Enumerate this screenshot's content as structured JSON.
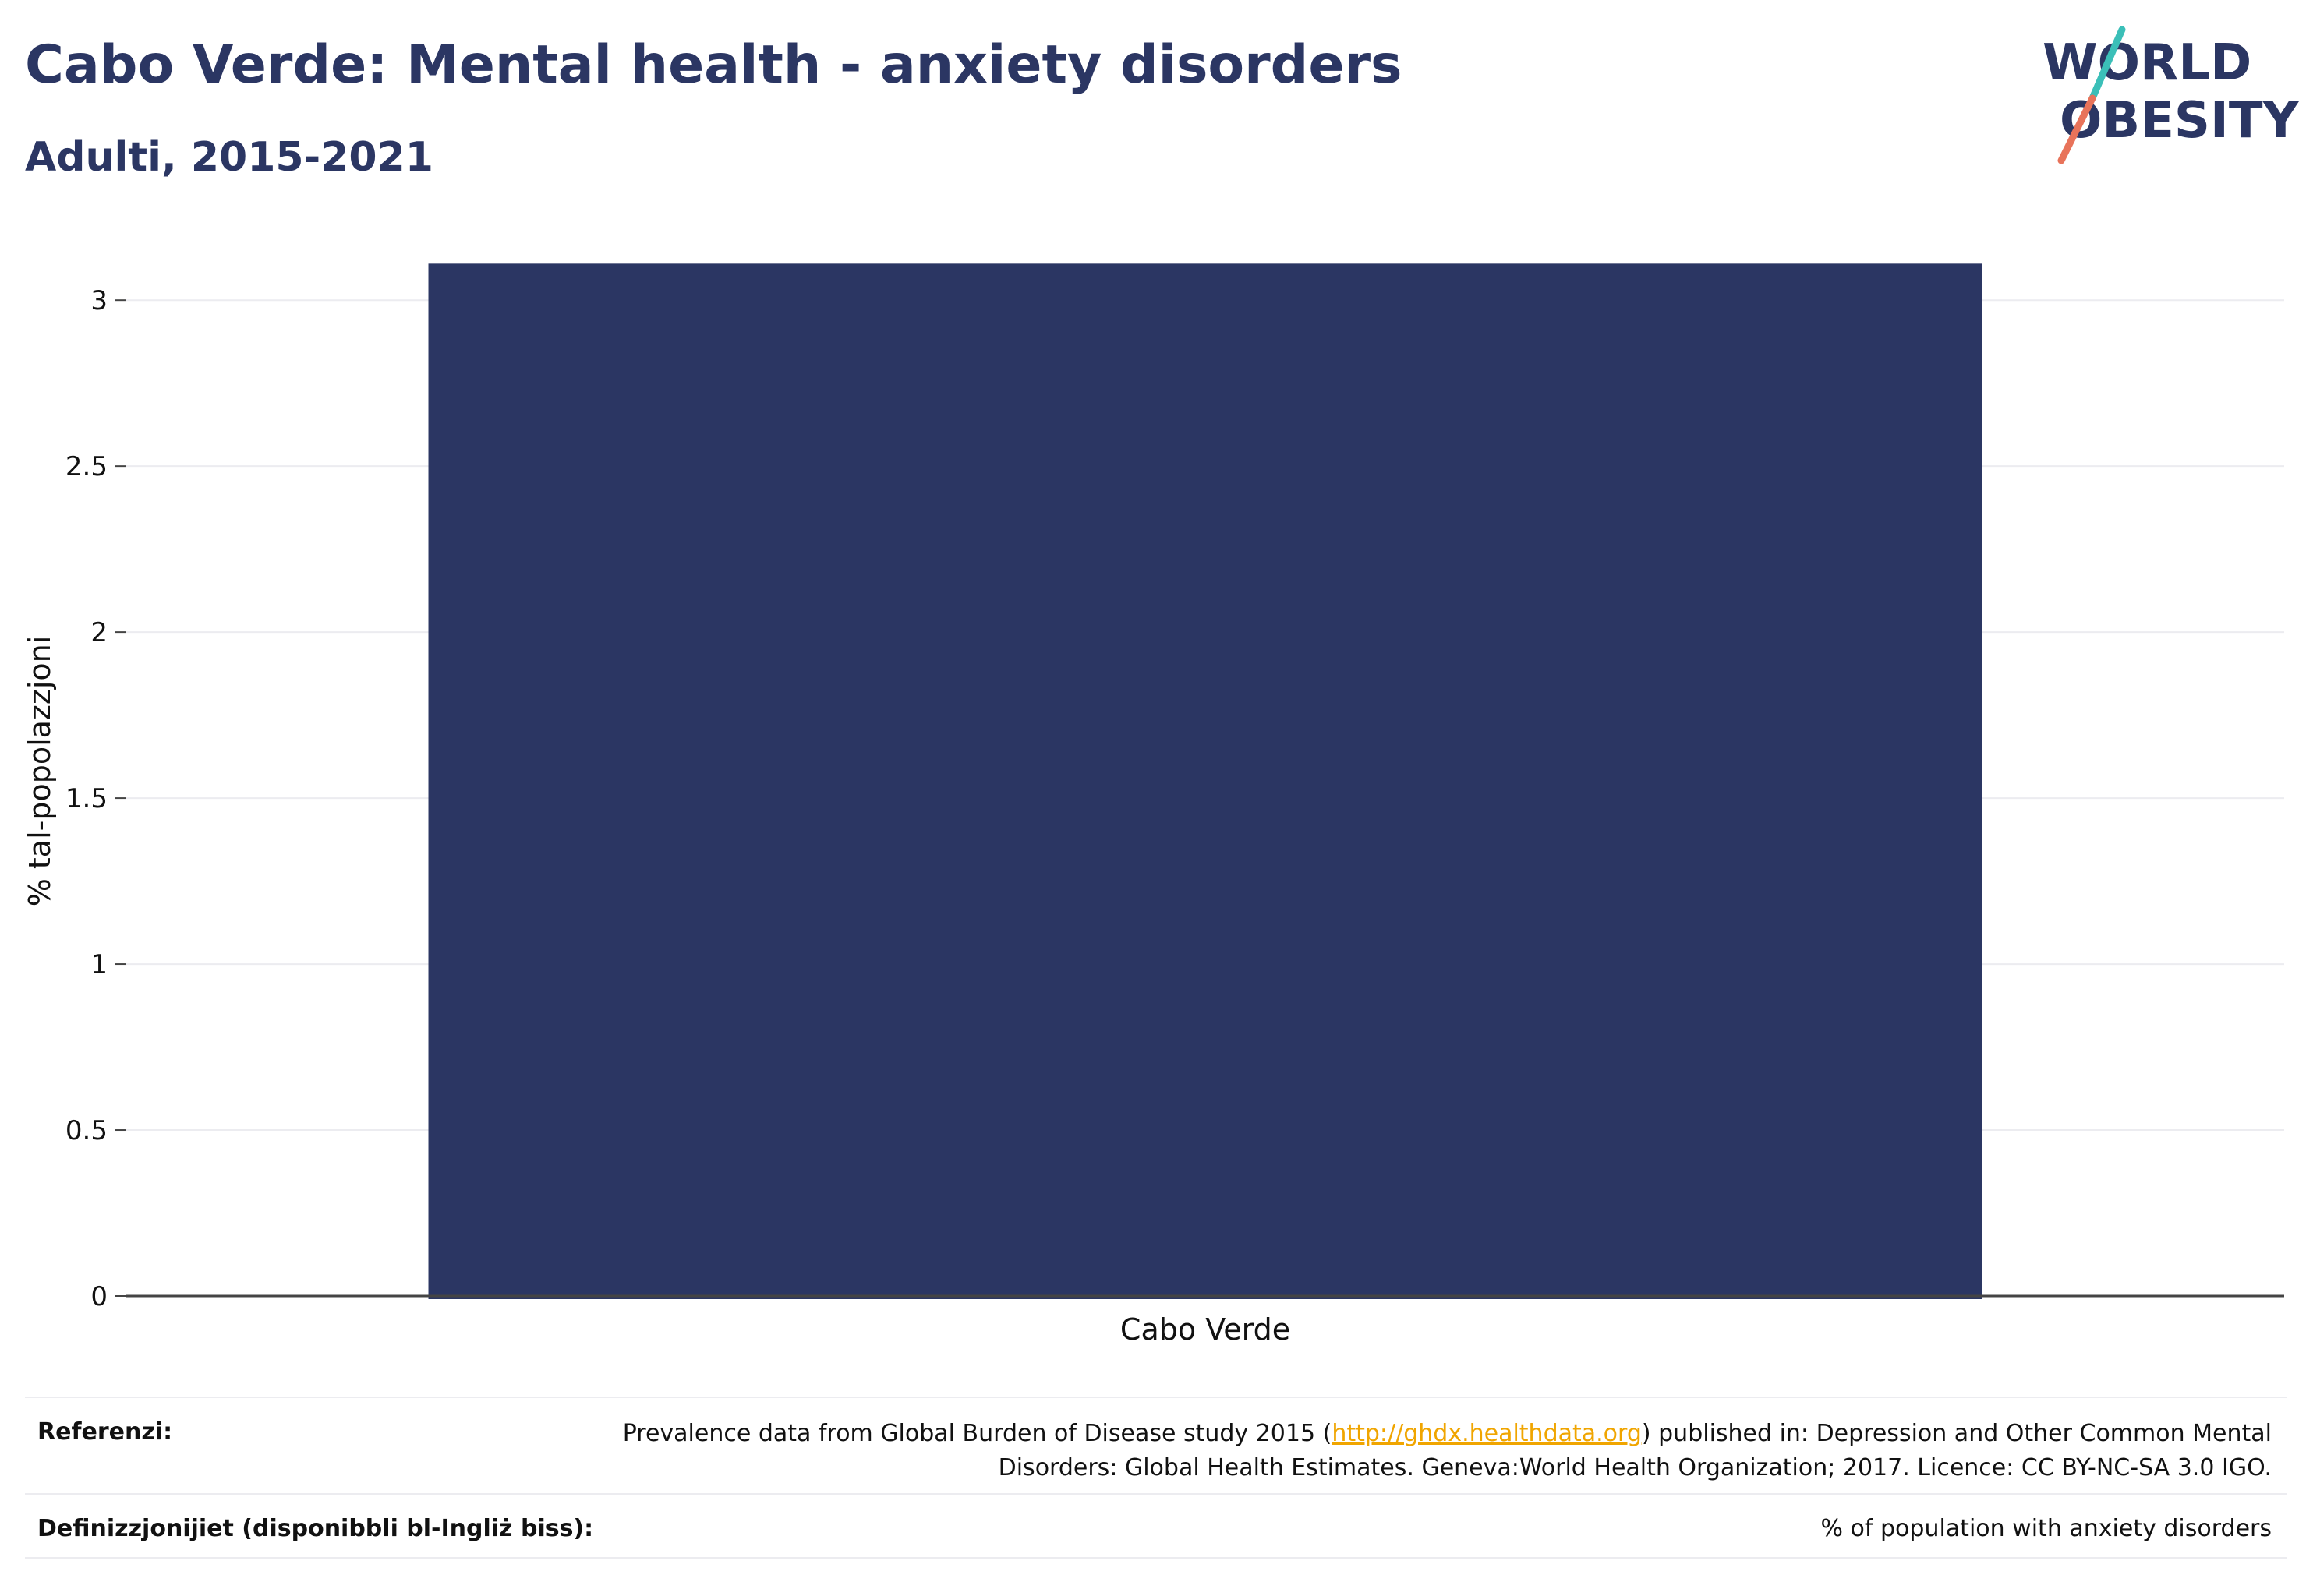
{
  "header": {
    "title": "Cabo Verde: Mental health - anxiety disorders",
    "subtitle": "Adulti, 2015-2021"
  },
  "logo": {
    "line1": "WORLD",
    "line2": "OBESITY",
    "colors": {
      "text": "#2b3663",
      "slash_top": "#3bbfb8",
      "slash_bottom": "#e8735a"
    }
  },
  "chart_data": {
    "type": "bar",
    "categories": [
      "Cabo Verde"
    ],
    "values": [
      3.11
    ],
    "ylabel": "% tal-popolazzjoni",
    "ylim": [
      0,
      3.2
    ],
    "yticks": [
      {
        "value": 0,
        "label": "0"
      },
      {
        "value": 0.5,
        "label": "0.5"
      },
      {
        "value": 1,
        "label": "1"
      },
      {
        "value": 1.5,
        "label": "1.5"
      },
      {
        "value": 2,
        "label": "2"
      },
      {
        "value": 2.5,
        "label": "2.5"
      },
      {
        "value": 3,
        "label": "3"
      }
    ],
    "grid": true,
    "bar_color": "#2b3663"
  },
  "footer": {
    "references_label": "Referenzi:",
    "references_pre": "Prevalence data from Global Burden of Disease study 2015 (",
    "references_link": "http://ghdx.healthdata.org",
    "references_post": ") published in: Depression and Other Common Mental Disorders: Global Health Estimates. Geneva:World Health Organization; 2017. Licence: CC BY-NC-SA 3.0 IGO.",
    "definitions_label": "Definizzjonijiet (disponibbli bl-Ingliż biss):",
    "definitions_text": "% of population with anxiety disorders"
  }
}
